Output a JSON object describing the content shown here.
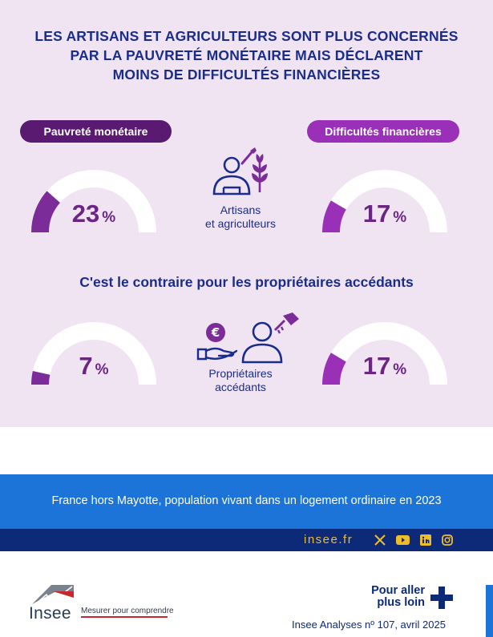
{
  "headline": {
    "line1": "LES ARTISANS ET AGRICULTEURS SONT PLUS CONCERNÉS",
    "line2": "PAR LA PAUVRETÉ MONÉTAIRE MAIS DÉCLARENT",
    "line3": "MOINS DE DIFFICULTÉS FINANCIÈRES"
  },
  "labels": {
    "poverty": "Pauvreté monétaire",
    "difficulties": "Difficultés financières"
  },
  "subheading": "C'est le contraire pour les propriétaires accédants",
  "groups": [
    {
      "line1": "Artisans",
      "line2": "et agriculteurs"
    },
    {
      "line1": "Propriétaires",
      "line2": "accédants"
    }
  ],
  "gauges": [
    {
      "value": 23,
      "unit": "%",
      "fraction": 0.23
    },
    {
      "value": 17,
      "unit": "%",
      "fraction": 0.17
    },
    {
      "value": 7,
      "unit": "%",
      "fraction": 0.07
    },
    {
      "value": 17,
      "unit": "%",
      "fraction": 0.17
    }
  ],
  "source": "France hors Mayotte, population vivant dans un logement ordinaire en 2023",
  "social": {
    "site": "insee.fr",
    "icons": [
      "x-icon",
      "youtube-icon",
      "linkedin-icon",
      "instagram-icon"
    ]
  },
  "footer": {
    "brand": "Insee",
    "tagline": "Mesurer pour comprendre",
    "more_line1": "Pour aller",
    "more_line2": "plus loin",
    "reference": "Insee Analyses nº 107, avril 2025"
  },
  "colors": {
    "background": "#f1e4f2",
    "navy": "#1a2c8c",
    "dark_purple": "#5a1a72",
    "purple": "#9a30b8",
    "gauge_fill": "#7b2c99",
    "blue": "#1c74d9",
    "dark_blue": "#0d2a78",
    "gold": "#f0bd2a"
  }
}
